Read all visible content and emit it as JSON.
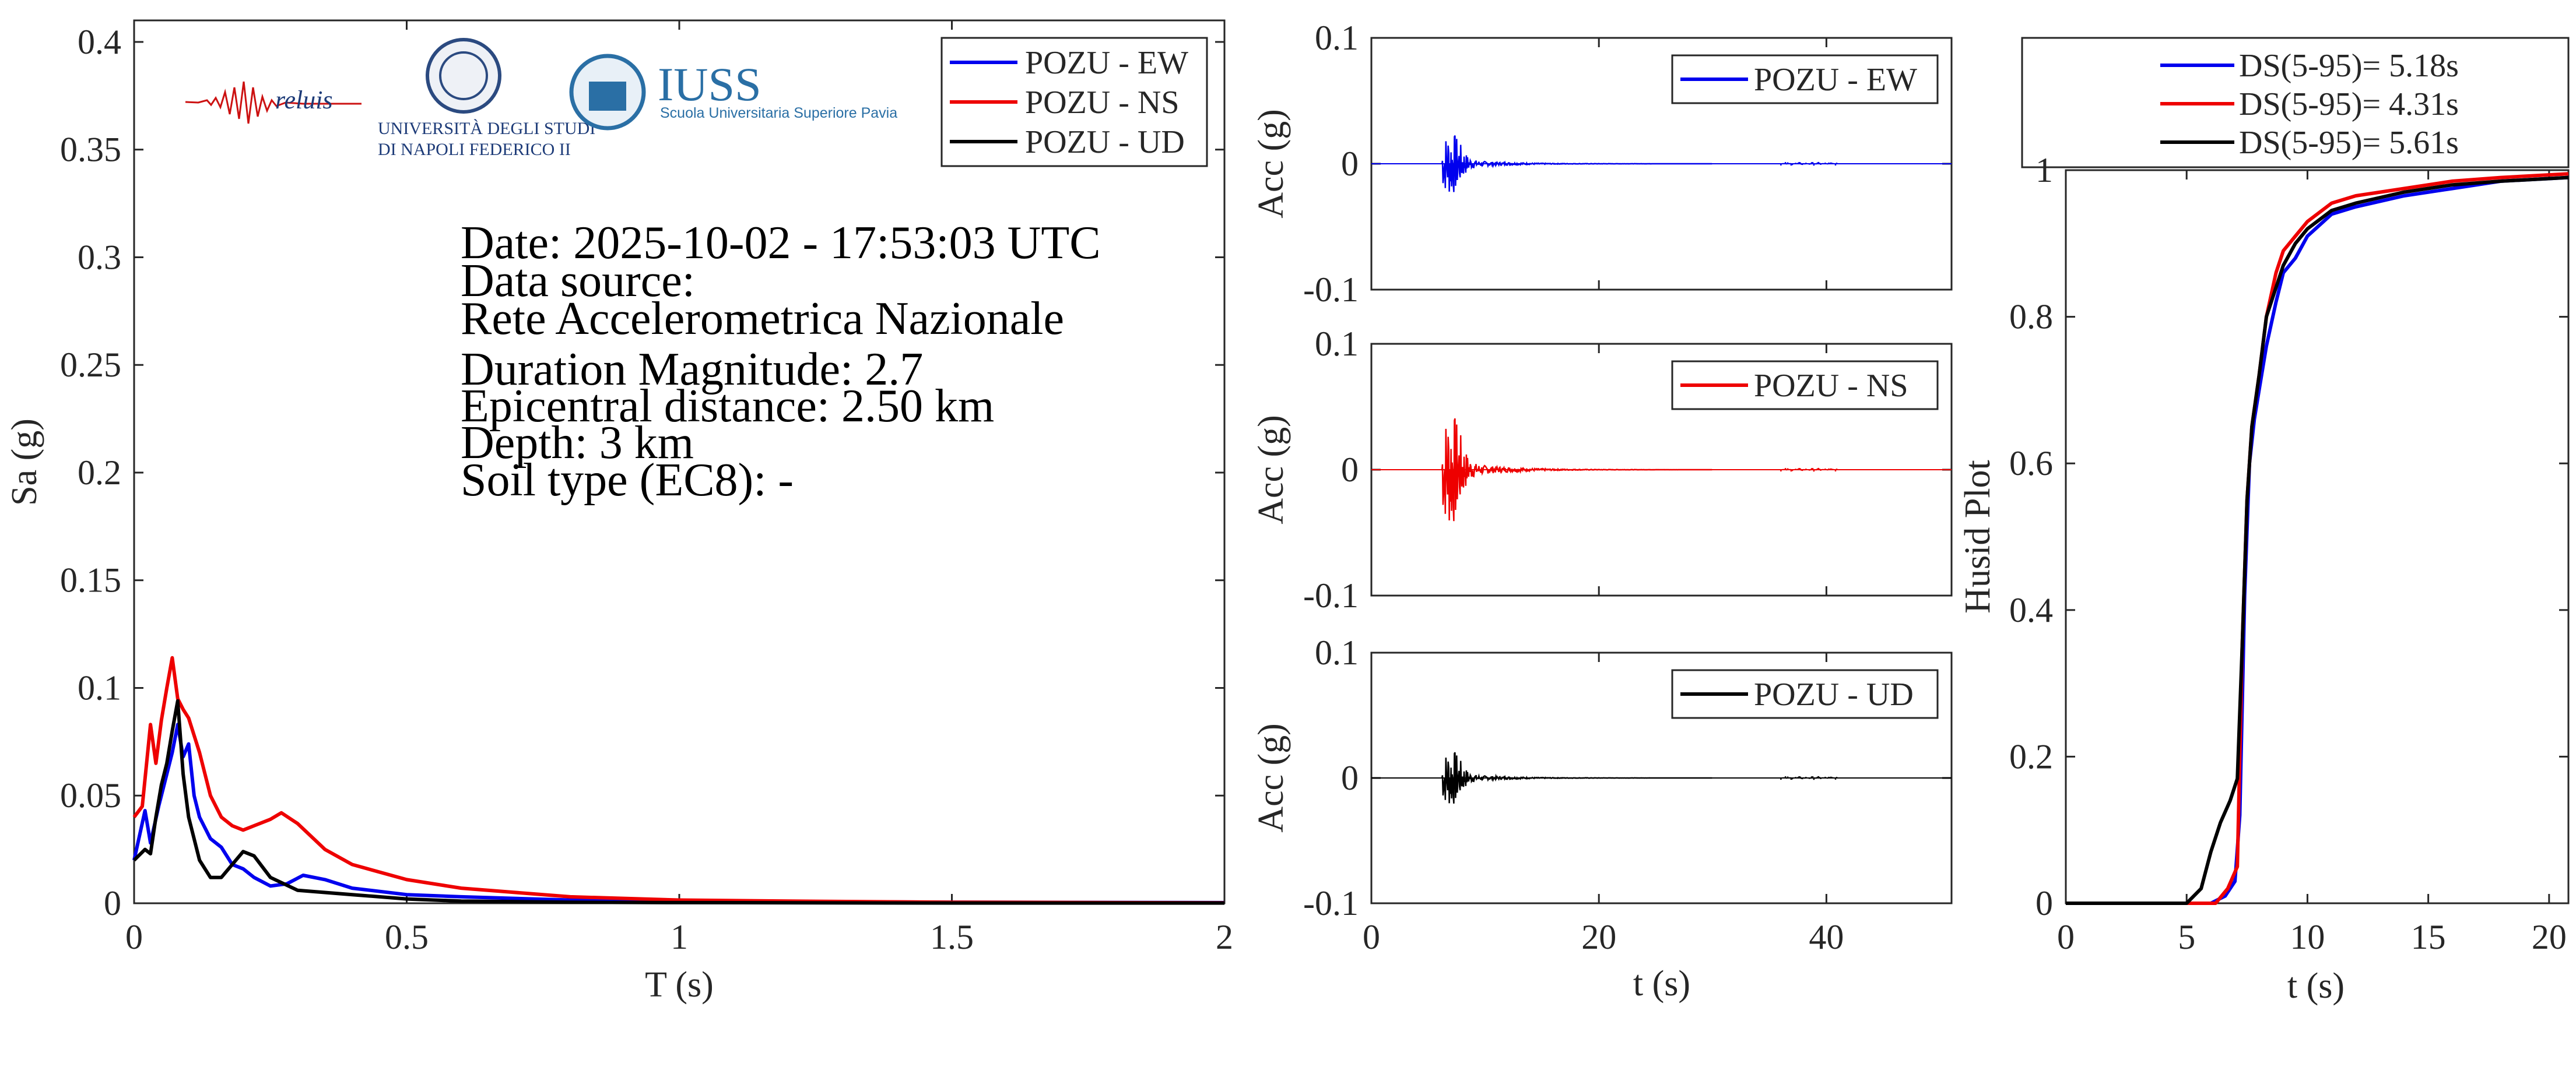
{
  "chart_data": [
    {
      "id": "spectrum",
      "type": "line",
      "xlabel": "T (s)",
      "ylabel": "Sa (g)",
      "xlim": [
        0,
        2
      ],
      "ylim": [
        0,
        0.41
      ],
      "xticks": [
        "0",
        "0.5",
        "1",
        "1.5",
        "2"
      ],
      "yticks": [
        "0",
        "0.05",
        "0.1",
        "0.15",
        "0.2",
        "0.25",
        "0.3",
        "0.35",
        "0.4"
      ],
      "legend_position": "top-right",
      "series": [
        {
          "name": "POZU - EW",
          "color": "#0000ee",
          "x": [
            0,
            0.02,
            0.03,
            0.045,
            0.06,
            0.07,
            0.08,
            0.09,
            0.1,
            0.11,
            0.12,
            0.14,
            0.16,
            0.18,
            0.2,
            0.22,
            0.25,
            0.28,
            0.31,
            0.35,
            0.4,
            0.5,
            0.6,
            0.8,
            1.0,
            1.5,
            2.0
          ],
          "y": [
            0.02,
            0.043,
            0.028,
            0.045,
            0.06,
            0.07,
            0.083,
            0.068,
            0.074,
            0.05,
            0.04,
            0.03,
            0.026,
            0.018,
            0.016,
            0.012,
            0.008,
            0.009,
            0.013,
            0.011,
            0.007,
            0.004,
            0.003,
            0.0015,
            0.001,
            0.0005,
            0.0003
          ]
        },
        {
          "name": "POZU - NS",
          "color": "#ee0000",
          "x": [
            0,
            0.015,
            0.03,
            0.04,
            0.05,
            0.06,
            0.07,
            0.08,
            0.09,
            0.1,
            0.12,
            0.14,
            0.16,
            0.18,
            0.2,
            0.22,
            0.25,
            0.27,
            0.3,
            0.35,
            0.4,
            0.5,
            0.6,
            0.7,
            0.8,
            1.0,
            1.2,
            1.5,
            2.0
          ],
          "y": [
            0.04,
            0.045,
            0.083,
            0.065,
            0.085,
            0.1,
            0.114,
            0.095,
            0.09,
            0.086,
            0.07,
            0.05,
            0.04,
            0.036,
            0.034,
            0.036,
            0.039,
            0.042,
            0.037,
            0.025,
            0.018,
            0.011,
            0.007,
            0.005,
            0.003,
            0.0015,
            0.001,
            0.0005,
            0.0002
          ]
        },
        {
          "name": "POZU - UD",
          "color": "#000000",
          "x": [
            0,
            0.02,
            0.03,
            0.04,
            0.05,
            0.06,
            0.07,
            0.08,
            0.09,
            0.1,
            0.12,
            0.14,
            0.16,
            0.18,
            0.2,
            0.22,
            0.25,
            0.3,
            0.35,
            0.4,
            0.5,
            0.6,
            0.8,
            1.0,
            1.5,
            2.0
          ],
          "y": [
            0.02,
            0.025,
            0.023,
            0.04,
            0.055,
            0.065,
            0.08,
            0.094,
            0.06,
            0.04,
            0.02,
            0.012,
            0.012,
            0.018,
            0.024,
            0.022,
            0.012,
            0.006,
            0.005,
            0.004,
            0.002,
            0.001,
            0.0005,
            0.0003,
            0.0001,
            0.0001
          ]
        }
      ]
    },
    {
      "id": "acc-ew",
      "type": "line",
      "ylabel": "Acc (g)",
      "xlim": [
        0,
        51
      ],
      "ylim": [
        -0.1,
        0.1
      ],
      "yticks": [
        "-0.1",
        "0",
        "0.1"
      ],
      "legend_position": "top-right",
      "series": [
        {
          "name": "POZU - EW",
          "color": "#0000ee",
          "peak": 0.022,
          "onset": 6.2
        }
      ]
    },
    {
      "id": "acc-ns",
      "type": "line",
      "ylabel": "Acc (g)",
      "xlim": [
        0,
        51
      ],
      "ylim": [
        -0.1,
        0.1
      ],
      "yticks": [
        "-0.1",
        "0",
        "0.1"
      ],
      "legend_position": "top-right",
      "series": [
        {
          "name": "POZU - NS",
          "color": "#ee0000",
          "peak": 0.04,
          "onset": 6.2
        }
      ]
    },
    {
      "id": "acc-ud",
      "type": "line",
      "xlabel": "t (s)",
      "ylabel": "Acc (g)",
      "xlim": [
        0,
        51
      ],
      "ylim": [
        -0.1,
        0.1
      ],
      "xticks": [
        "0",
        "20",
        "40"
      ],
      "yticks": [
        "-0.1",
        "0",
        "0.1"
      ],
      "legend_position": "top-right",
      "series": [
        {
          "name": "POZU - UD",
          "color": "#000000",
          "peak": 0.02,
          "onset": 6.2
        }
      ]
    },
    {
      "id": "husid",
      "type": "line",
      "xlabel": "t (s)",
      "ylabel": "Husid Plot",
      "xlim": [
        0,
        20.8
      ],
      "ylim": [
        0,
        1
      ],
      "xticks": [
        "0",
        "5",
        "10",
        "15",
        "20"
      ],
      "yticks": [
        "0",
        "0.2",
        "0.4",
        "0.6",
        "0.8",
        "1"
      ],
      "legend_position": "above",
      "series": [
        {
          "name": "DS(5-95)= 5.18s",
          "color": "#0000ee",
          "x": [
            0,
            6.0,
            6.6,
            7.0,
            7.2,
            7.4,
            7.6,
            7.8,
            8.0,
            8.3,
            8.7,
            9.0,
            9.5,
            10,
            11,
            12,
            14,
            16,
            18,
            20.8
          ],
          "y": [
            0,
            0,
            0.01,
            0.03,
            0.12,
            0.42,
            0.6,
            0.66,
            0.7,
            0.76,
            0.82,
            0.86,
            0.88,
            0.91,
            0.94,
            0.95,
            0.965,
            0.975,
            0.985,
            0.99
          ]
        },
        {
          "name": "DS(5-95)= 4.31s",
          "color": "#ee0000",
          "x": [
            0,
            6.2,
            6.7,
            7.1,
            7.3,
            7.5,
            7.7,
            8.0,
            8.3,
            8.7,
            9.0,
            9.5,
            10,
            11,
            12,
            14,
            16,
            18,
            20.8
          ],
          "y": [
            0,
            0,
            0.02,
            0.05,
            0.35,
            0.55,
            0.65,
            0.72,
            0.8,
            0.86,
            0.89,
            0.91,
            0.93,
            0.955,
            0.965,
            0.975,
            0.985,
            0.99,
            0.995
          ]
        },
        {
          "name": "DS(5-95)= 5.61s",
          "color": "#000000",
          "x": [
            0,
            5.0,
            5.6,
            6.0,
            6.4,
            6.8,
            7.1,
            7.3,
            7.5,
            7.7,
            8.0,
            8.3,
            8.7,
            9.0,
            9.5,
            10,
            11,
            12,
            14,
            16,
            18,
            20.8
          ],
          "y": [
            0,
            0,
            0.02,
            0.07,
            0.11,
            0.14,
            0.17,
            0.35,
            0.55,
            0.65,
            0.72,
            0.8,
            0.84,
            0.87,
            0.9,
            0.92,
            0.945,
            0.955,
            0.97,
            0.98,
            0.985,
            0.99
          ]
        }
      ]
    }
  ],
  "info": {
    "date": "Date: 2025-10-02 - 17:53:03 UTC",
    "source_label": "Data source:",
    "source": "Rete Accelerometrica Nazionale",
    "magnitude": "Duration Magnitude: 2.7",
    "distance": "Epicentral distance: 2.50 km",
    "depth": "Depth: 3 km",
    "soil": "Soil type (EC8): -"
  },
  "logos": {
    "reluis": "reluis",
    "unina_line1": "UNIVERSITÀ DEGLI STUDI",
    "unina_line2": "DI NAPOLI FEDERICO II",
    "iuss": "IUSS",
    "iuss_sub": "Scuola Universitaria Superiore Pavia"
  }
}
